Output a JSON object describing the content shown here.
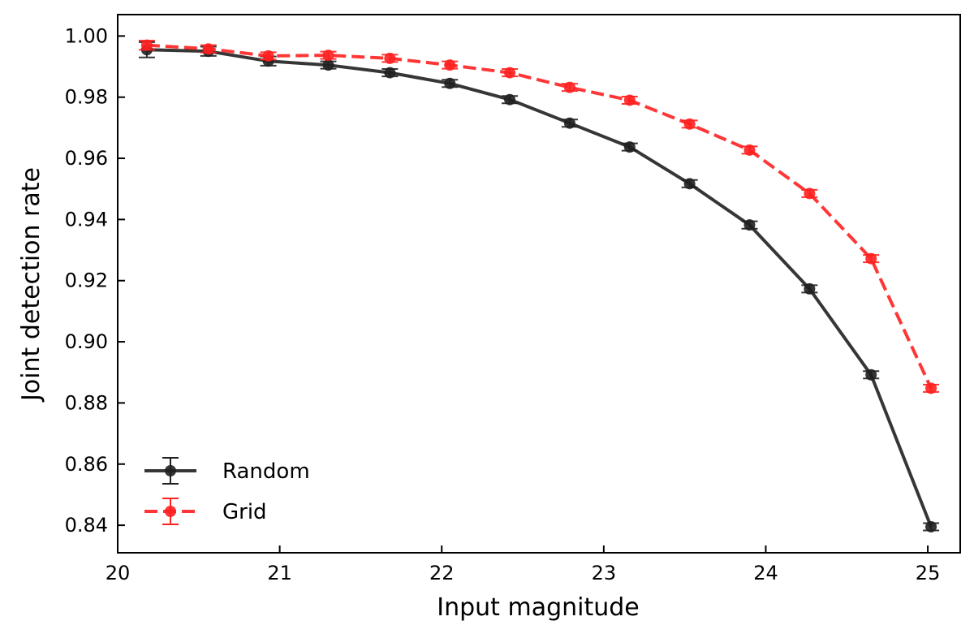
{
  "chart_data": {
    "type": "line",
    "title": "",
    "xlabel": "Input magnitude",
    "ylabel": "Joint detection rate",
    "xlim": [
      20.0,
      25.2
    ],
    "ylim": [
      0.831,
      1.007
    ],
    "xticks": [
      20,
      21,
      22,
      23,
      24,
      25
    ],
    "xtick_labels": [
      "20",
      "21",
      "22",
      "23",
      "24",
      "25"
    ],
    "yticks": [
      0.84,
      0.86,
      0.88,
      0.9,
      0.92,
      0.94,
      0.96,
      0.98,
      1.0
    ],
    "ytick_labels": [
      "0.84",
      "0.86",
      "0.88",
      "0.90",
      "0.92",
      "0.94",
      "0.96",
      "0.98",
      "1.00"
    ],
    "legend_position": "lower-left",
    "x": [
      20.18,
      20.56,
      20.93,
      21.3,
      21.68,
      22.05,
      22.42,
      22.79,
      23.16,
      23.53,
      23.9,
      24.27,
      24.65,
      25.02
    ],
    "series": [
      {
        "name": "Random",
        "color": "#202020",
        "style": "solid",
        "values": [
          0.9955,
          0.995,
          0.9918,
          0.9905,
          0.988,
          0.9845,
          0.9792,
          0.9715,
          0.9637,
          0.9517,
          0.9382,
          0.9173,
          0.8892,
          0.8395
        ],
        "errors": [
          0.0025,
          0.0015,
          0.0015,
          0.0012,
          0.0012,
          0.0012,
          0.0012,
          0.0012,
          0.0012,
          0.0012,
          0.0012,
          0.0012,
          0.0012,
          0.0012
        ]
      },
      {
        "name": "Grid",
        "color": "#ff2020",
        "style": "dashed",
        "values": [
          0.997,
          0.9958,
          0.9935,
          0.9937,
          0.9927,
          0.9905,
          0.988,
          0.9832,
          0.979,
          0.9712,
          0.9627,
          0.9485,
          0.9272,
          0.8848
        ],
        "errors": [
          0.0015,
          0.0012,
          0.0012,
          0.0012,
          0.0012,
          0.0012,
          0.0012,
          0.0012,
          0.0012,
          0.0012,
          0.0012,
          0.0012,
          0.0012,
          0.0012
        ]
      }
    ]
  }
}
